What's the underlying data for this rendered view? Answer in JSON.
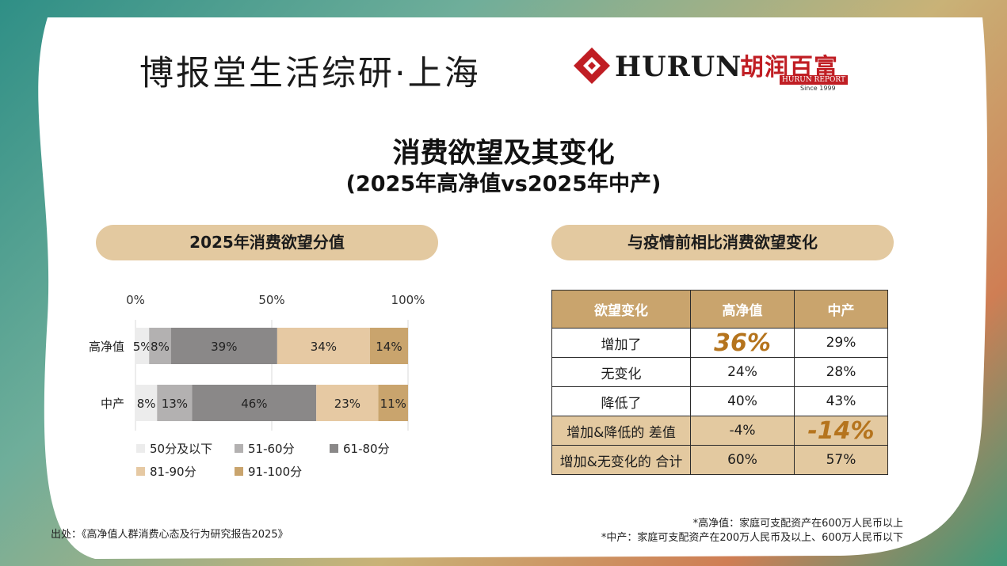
{
  "header": {
    "brand_text": "博报堂生活综研·上海",
    "hurun_word": "HURUN",
    "cn_logo_text": "胡润百富",
    "report_bar": "HURUN REPORT",
    "since": "Since 1999"
  },
  "title": "消费欲望及其变化",
  "subtitle": "(2025年高净值vs2025年中产)",
  "left_panel": {
    "title": "2025年消费欲望分值"
  },
  "right_panel": {
    "title": "与疫情前相比消费欲望变化"
  },
  "colors": {
    "s1": "#ececec",
    "s2": "#b3b1b1",
    "s3": "#8a8888",
    "s4": "#e6c9a3",
    "s5": "#c9a46d",
    "accent": "#b5741d"
  },
  "chart_data": {
    "type": "bar",
    "orientation": "horizontal",
    "stacked": true,
    "categories": [
      "高净值",
      "中产"
    ],
    "x_ticks": [
      "0%",
      "50%",
      "100%"
    ],
    "xlim": [
      0,
      100
    ],
    "series": [
      {
        "name": "50分及以下",
        "values": [
          5,
          8
        ],
        "labels": [
          "5%",
          "8%"
        ]
      },
      {
        "name": "51-60分",
        "values": [
          8,
          13
        ],
        "labels": [
          "8%",
          "13%"
        ]
      },
      {
        "name": "61-80分",
        "values": [
          39,
          46
        ],
        "labels": [
          "39%",
          "46%"
        ]
      },
      {
        "name": "81-90分",
        "values": [
          34,
          23
        ],
        "labels": [
          "34%",
          "23%"
        ]
      },
      {
        "name": "91-100分",
        "values": [
          14,
          11
        ],
        "labels": [
          "14%",
          "11%"
        ]
      }
    ],
    "legend_position": "bottom"
  },
  "table": {
    "headers": [
      "欲望变化",
      "高净值",
      "中产"
    ],
    "rows": [
      [
        "增加了",
        "36%",
        "29%"
      ],
      [
        "无变化",
        "24%",
        "28%"
      ],
      [
        "降低了",
        "40%",
        "43%"
      ],
      [
        "增加&降低的 差值",
        "-4%",
        "-14%"
      ],
      [
        "增加&无变化的 合计",
        "60%",
        "57%"
      ]
    ]
  },
  "footer": {
    "source": "出处：《高净值人群消费心态及行为研究报告2025》",
    "note1": "*高净值：家庭可支配资产在600万人民币以上",
    "note2": "*中产：家庭可支配资产在200万人民币及以上、600万人民币以下"
  }
}
